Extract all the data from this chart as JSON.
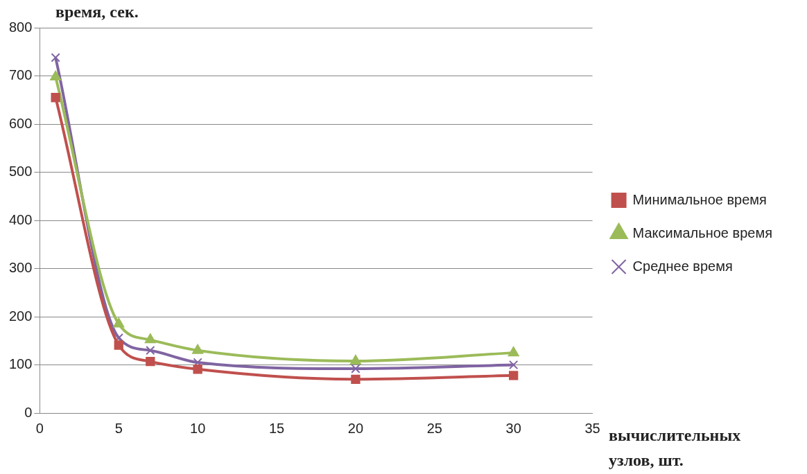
{
  "chart_data": {
    "type": "line",
    "ylabel": "время, сек.",
    "xlabel": "вычислительных узлов, шт.",
    "x": [
      1,
      5,
      7,
      10,
      20,
      30
    ],
    "series": [
      {
        "name": "Минимальное время",
        "color": "#c0504d",
        "marker": "square",
        "values": [
          655,
          141,
          107,
          91,
          70,
          78
        ]
      },
      {
        "name": "Максимальное время",
        "color": "#9bbb59",
        "marker": "triangle",
        "values": [
          698,
          185,
          152,
          130,
          108,
          125
        ]
      },
      {
        "name": "Среднее время",
        "color": "#8064a2",
        "marker": "cross",
        "values": [
          738,
          156,
          130,
          105,
          92,
          100
        ]
      }
    ],
    "xlim": [
      0,
      35
    ],
    "xticks": [
      0,
      5,
      10,
      15,
      20,
      25,
      30,
      35
    ],
    "ylim": [
      0,
      800
    ],
    "yticks": [
      0,
      100,
      200,
      300,
      400,
      500,
      600,
      700,
      800
    ],
    "grid": "y",
    "legend": "right"
  }
}
